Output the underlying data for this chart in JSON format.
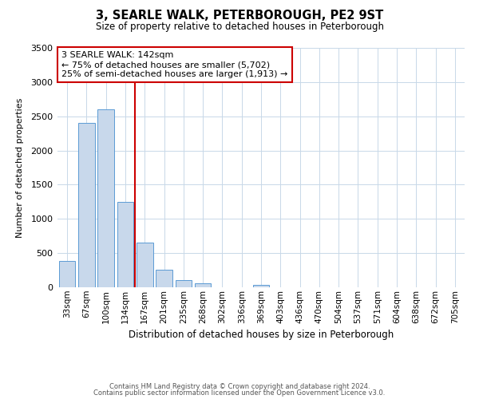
{
  "title": "3, SEARLE WALK, PETERBOROUGH, PE2 9ST",
  "subtitle": "Size of property relative to detached houses in Peterborough",
  "xlabel": "Distribution of detached houses by size in Peterborough",
  "ylabel": "Number of detached properties",
  "bar_labels": [
    "33sqm",
    "67sqm",
    "100sqm",
    "134sqm",
    "167sqm",
    "201sqm",
    "235sqm",
    "268sqm",
    "302sqm",
    "336sqm",
    "369sqm",
    "403sqm",
    "436sqm",
    "470sqm",
    "504sqm",
    "537sqm",
    "571sqm",
    "604sqm",
    "638sqm",
    "672sqm",
    "705sqm"
  ],
  "bar_values": [
    390,
    2400,
    2600,
    1250,
    650,
    260,
    110,
    55,
    0,
    0,
    40,
    0,
    0,
    0,
    0,
    0,
    0,
    0,
    0,
    0,
    0
  ],
  "bar_color": "#c8d8eb",
  "bar_edgecolor": "#5b9bd5",
  "vline_index": 3,
  "vline_color": "#cc0000",
  "ylim": [
    0,
    3500
  ],
  "yticks": [
    0,
    500,
    1000,
    1500,
    2000,
    2500,
    3000,
    3500
  ],
  "annotation_title": "3 SEARLE WALK: 142sqm",
  "annotation_line1": "← 75% of detached houses are smaller (5,702)",
  "annotation_line2": "25% of semi-detached houses are larger (1,913) →",
  "annotation_box_edgecolor": "#cc0000",
  "footer1": "Contains HM Land Registry data © Crown copyright and database right 2024.",
  "footer2": "Contains public sector information licensed under the Open Government Licence v3.0.",
  "background_color": "#ffffff",
  "grid_color": "#c8d8e8",
  "tick_color": "#888888"
}
